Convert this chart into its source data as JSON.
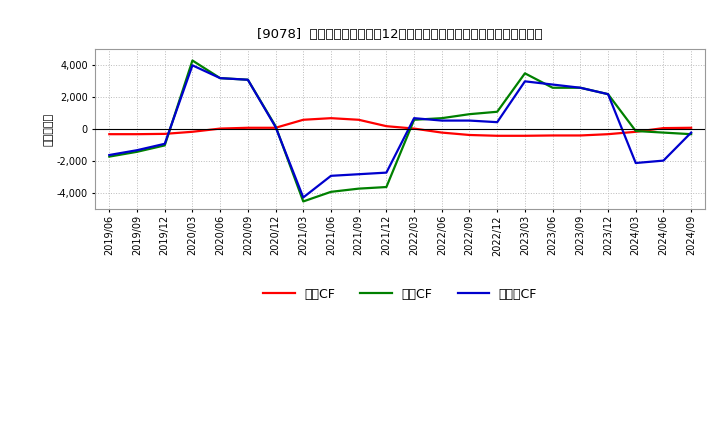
{
  "title": "[9078]  キャッシュフローの12か月移動合計の対前年同期増減額の推移",
  "ylabel": "（百万円）",
  "background_color": "#ffffff",
  "plot_background_color": "#ffffff",
  "grid_color": "#bbbbbb",
  "x_labels": [
    "2019/06",
    "2019/09",
    "2019/12",
    "2020/03",
    "2020/06",
    "2020/09",
    "2020/12",
    "2021/03",
    "2021/06",
    "2021/09",
    "2021/12",
    "2022/03",
    "2022/06",
    "2022/09",
    "2022/12",
    "2023/03",
    "2023/06",
    "2023/09",
    "2023/12",
    "2024/03",
    "2024/06",
    "2024/09"
  ],
  "eigyo_cf": [
    -300,
    -300,
    -280,
    -150,
    50,
    100,
    100,
    600,
    700,
    600,
    200,
    50,
    -200,
    -350,
    -400,
    -400,
    -380,
    -380,
    -300,
    -150,
    80,
    100
  ],
  "toshi_cf": [
    -1700,
    -1400,
    -1000,
    4300,
    3200,
    3100,
    200,
    -4500,
    -3900,
    -3700,
    -3600,
    600,
    700,
    950,
    1100,
    3500,
    2600,
    2600,
    2200,
    -100,
    -200,
    -300
  ],
  "free_cf": [
    -1600,
    -1300,
    -900,
    4000,
    3200,
    3100,
    150,
    -4250,
    -2900,
    -2800,
    -2700,
    700,
    550,
    550,
    450,
    3000,
    2800,
    2600,
    2200,
    -2100,
    -1950,
    -200
  ],
  "eigyo_color": "#ff0000",
  "toshi_color": "#008000",
  "free_color": "#0000cd",
  "ylim": [
    -5000,
    5000
  ],
  "yticks": [
    -4000,
    -2000,
    0,
    2000,
    4000
  ],
  "line_width": 1.6,
  "legend_labels": [
    "営業CF",
    "投資CF",
    "フリーCF"
  ]
}
